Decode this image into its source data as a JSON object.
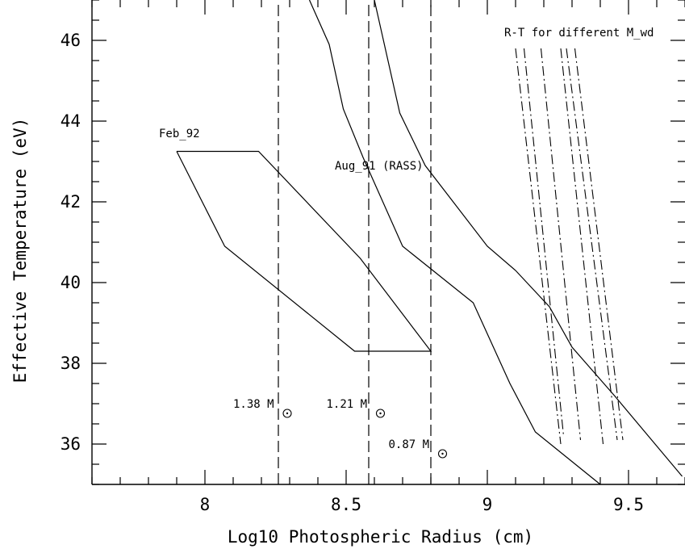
{
  "chart_data": {
    "type": "line",
    "xlabel": "Log10 Photospheric Radius (cm)",
    "ylabel": "Effective Temperature (eV)",
    "xlim": [
      7.6,
      9.7
    ],
    "ylim": [
      35,
      47
    ],
    "x_ticks": [
      {
        "value": 8,
        "label": "8"
      },
      {
        "value": 8.5,
        "label": "8.5"
      },
      {
        "value": 9,
        "label": "9"
      },
      {
        "value": 9.5,
        "label": "9.5"
      }
    ],
    "y_ticks": [
      {
        "value": 36,
        "label": "36"
      },
      {
        "value": 38,
        "label": "38"
      },
      {
        "value": 40,
        "label": "40"
      },
      {
        "value": 42,
        "label": "42"
      },
      {
        "value": 44,
        "label": "44"
      },
      {
        "value": 46,
        "label": "46"
      }
    ],
    "x_minor_step": 0.1,
    "y_minor_step": 0.5,
    "grid": false,
    "regions": [
      {
        "label": "Feb_92",
        "label_at": [
          7.9,
          43.6
        ],
        "points": [
          [
            7.9,
            43.25
          ],
          [
            8.19,
            43.25
          ],
          [
            8.55,
            40.6
          ],
          [
            8.8,
            38.3
          ],
          [
            8.53,
            38.3
          ],
          [
            8.07,
            40.9
          ],
          [
            7.9,
            43.25
          ]
        ]
      }
    ],
    "curves": [
      {
        "name": "Aug_91 left boundary",
        "points": [
          [
            8.37,
            47
          ],
          [
            8.44,
            45.9
          ],
          [
            8.49,
            44.3
          ],
          [
            8.56,
            43.1
          ],
          [
            8.7,
            40.9
          ],
          [
            8.95,
            39.5
          ],
          [
            9.08,
            37.5
          ],
          [
            9.17,
            36.3
          ],
          [
            9.4,
            35
          ]
        ]
      },
      {
        "name": "Aug_91 right boundary",
        "points": [
          [
            8.6,
            47
          ],
          [
            8.69,
            44.2
          ],
          [
            8.78,
            42.9
          ],
          [
            9.0,
            40.9
          ],
          [
            9.1,
            40.3
          ],
          [
            9.22,
            39.4
          ],
          [
            9.3,
            38.4
          ],
          [
            9.45,
            37.2
          ],
          [
            9.69,
            35.2
          ]
        ]
      }
    ],
    "curve_label": {
      "text": "Aug_91 (RASS)",
      "at": [
        8.46,
        42.8
      ]
    },
    "mass_lines": [
      {
        "x": 8.26,
        "label": "1.38 M",
        "label_at": [
          8.1,
          36.9
        ]
      },
      {
        "x": 8.58,
        "label": "1.21 M",
        "label_at": [
          8.43,
          36.9
        ]
      },
      {
        "x": 8.8,
        "label": "0.87 M",
        "label_at": [
          8.65,
          35.9
        ]
      }
    ],
    "mass_line_range": [
      35,
      47
    ],
    "rt_lines": [
      {
        "points": [
          [
            9.1,
            45.8
          ],
          [
            9.26,
            36.0
          ]
        ]
      },
      {
        "points": [
          [
            9.13,
            45.8
          ],
          [
            9.27,
            36.2
          ]
        ]
      },
      {
        "points": [
          [
            9.19,
            45.8
          ],
          [
            9.33,
            36.1
          ]
        ]
      },
      {
        "points": [
          [
            9.26,
            45.8
          ],
          [
            9.41,
            36.0
          ]
        ]
      },
      {
        "points": [
          [
            9.28,
            45.8
          ],
          [
            9.46,
            36.1
          ]
        ]
      },
      {
        "points": [
          [
            9.31,
            45.8
          ],
          [
            9.48,
            36.1
          ]
        ]
      }
    ],
    "rt_label": {
      "text": "R-T for different M_wd",
      "at": [
        9.06,
        46.1
      ]
    }
  }
}
